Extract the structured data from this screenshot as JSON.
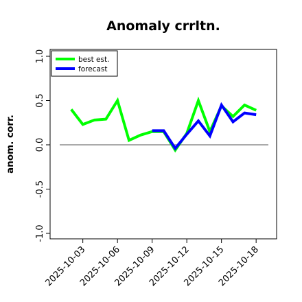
{
  "chart_data": {
    "type": "line",
    "title": "Anomaly crrltn.",
    "xlabel": "",
    "ylabel": "anom. corr.",
    "ylim": [
      -1.0,
      1.0
    ],
    "yticks": [
      -1.0,
      -0.5,
      0.0,
      0.5,
      1.0
    ],
    "ytick_labels": [
      "-1.0",
      "-0.5",
      "0.0",
      "0.5",
      "1.0"
    ],
    "xlim": [
      "2025-10-01",
      "2025-10-19"
    ],
    "xticks": [
      "2025-10-03",
      "2025-10-06",
      "2025-10-09",
      "2025-10-12",
      "2025-10-15",
      "2025-10-18"
    ],
    "highlight_tick": "2025-10-09",
    "highlight_color": "#228b22",
    "reference_line": 0.0,
    "grid": false,
    "legend_position": "top-left",
    "series": [
      {
        "name": "best est.",
        "color": "#00ff00",
        "x": [
          "2025-10-02",
          "2025-10-03",
          "2025-10-04",
          "2025-10-05",
          "2025-10-06",
          "2025-10-07",
          "2025-10-08",
          "2025-10-09",
          "2025-10-10",
          "2025-10-11",
          "2025-10-12",
          "2025-10-13",
          "2025-10-14",
          "2025-10-15",
          "2025-10-16",
          "2025-10-17",
          "2025-10-18"
        ],
        "values": [
          0.4,
          0.23,
          0.28,
          0.29,
          0.5,
          0.05,
          0.11,
          0.15,
          0.15,
          -0.06,
          0.13,
          0.5,
          0.15,
          0.44,
          0.32,
          0.45,
          0.39
        ]
      },
      {
        "name": "forecast",
        "color": "#0000ff",
        "x": [
          "2025-10-09",
          "2025-10-10",
          "2025-10-11",
          "2025-10-12",
          "2025-10-13",
          "2025-10-14",
          "2025-10-15",
          "2025-10-16",
          "2025-10-17",
          "2025-10-18"
        ],
        "values": [
          0.16,
          0.16,
          -0.04,
          0.12,
          0.27,
          0.1,
          0.45,
          0.26,
          0.36,
          0.34
        ]
      }
    ]
  }
}
